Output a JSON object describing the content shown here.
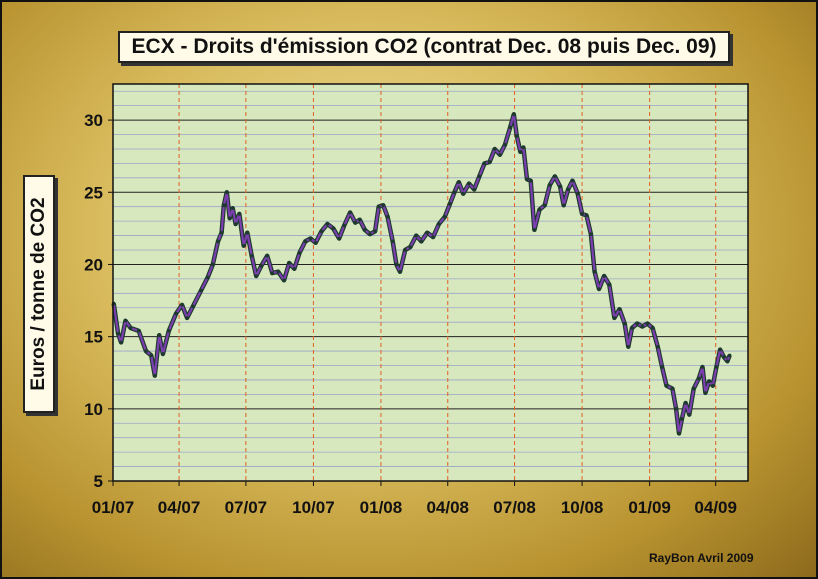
{
  "chart_data": {
    "type": "line",
    "title": "ECX - Droits d'émission CO2 (contrat Dec. 08 puis Dec. 09)",
    "ylabel": "Euros /  tonne de CO2",
    "xlabel": "",
    "credit": "RayBon Avril 2009",
    "x_tick_labels": [
      "01/07",
      "04/07",
      "07/07",
      "10/07",
      "01/08",
      "04/08",
      "07/08",
      "10/08",
      "01/09",
      "04/09"
    ],
    "y_tick_labels": [
      "5",
      "10",
      "15",
      "20",
      "25",
      "30"
    ],
    "ylim": [
      5,
      32.5
    ],
    "xlim": [
      "2007-01-01",
      "2009-05-15"
    ],
    "grid": "major and minor horizontal gridlines; dashed vertical gridlines at each quarter",
    "colors": {
      "plot_background": "#d7e8bf",
      "line": "#7b3fb0",
      "marker": "#1e3a2e",
      "vertical_grid": "#e06020",
      "major_grid": "#222222",
      "minor_grid": "#9aa6c8"
    },
    "series": [
      {
        "points": [
          [
            "2007-01-02",
            17.3
          ],
          [
            "2007-01-08",
            15.2
          ],
          [
            "2007-01-12",
            14.6
          ],
          [
            "2007-01-18",
            16.1
          ],
          [
            "2007-01-25",
            15.6
          ],
          [
            "2007-02-05",
            15.4
          ],
          [
            "2007-02-15",
            14.0
          ],
          [
            "2007-02-22",
            13.7
          ],
          [
            "2007-02-27",
            12.3
          ],
          [
            "2007-03-05",
            15.1
          ],
          [
            "2007-03-10",
            13.8
          ],
          [
            "2007-03-18",
            15.4
          ],
          [
            "2007-03-28",
            16.6
          ],
          [
            "2007-04-05",
            17.2
          ],
          [
            "2007-04-12",
            16.3
          ],
          [
            "2007-04-20",
            17.1
          ],
          [
            "2007-05-01",
            18.2
          ],
          [
            "2007-05-10",
            19.1
          ],
          [
            "2007-05-17",
            20.0
          ],
          [
            "2007-05-24",
            21.6
          ],
          [
            "2007-05-29",
            22.2
          ],
          [
            "2007-06-01",
            24.1
          ],
          [
            "2007-06-05",
            25.0
          ],
          [
            "2007-06-09",
            23.2
          ],
          [
            "2007-06-13",
            23.9
          ],
          [
            "2007-06-17",
            22.8
          ],
          [
            "2007-06-22",
            23.5
          ],
          [
            "2007-06-28",
            21.3
          ],
          [
            "2007-07-03",
            22.2
          ],
          [
            "2007-07-09",
            20.6
          ],
          [
            "2007-07-15",
            19.2
          ],
          [
            "2007-07-22",
            19.9
          ],
          [
            "2007-07-30",
            20.6
          ],
          [
            "2007-08-06",
            19.4
          ],
          [
            "2007-08-14",
            19.5
          ],
          [
            "2007-08-22",
            18.9
          ],
          [
            "2007-08-29",
            20.1
          ],
          [
            "2007-09-05",
            19.7
          ],
          [
            "2007-09-12",
            20.8
          ],
          [
            "2007-09-20",
            21.6
          ],
          [
            "2007-09-27",
            21.8
          ],
          [
            "2007-10-04",
            21.5
          ],
          [
            "2007-10-12",
            22.3
          ],
          [
            "2007-10-20",
            22.8
          ],
          [
            "2007-10-28",
            22.5
          ],
          [
            "2007-11-05",
            21.8
          ],
          [
            "2007-11-12",
            22.7
          ],
          [
            "2007-11-20",
            23.6
          ],
          [
            "2007-11-27",
            22.9
          ],
          [
            "2007-12-03",
            23.1
          ],
          [
            "2007-12-10",
            22.4
          ],
          [
            "2007-12-17",
            22.1
          ],
          [
            "2007-12-24",
            22.3
          ],
          [
            "2007-12-29",
            24.0
          ],
          [
            "2008-01-04",
            24.1
          ],
          [
            "2008-01-10",
            23.3
          ],
          [
            "2008-01-17",
            21.6
          ],
          [
            "2008-01-22",
            20.0
          ],
          [
            "2008-01-27",
            19.5
          ],
          [
            "2008-02-03",
            21.0
          ],
          [
            "2008-02-10",
            21.2
          ],
          [
            "2008-02-18",
            22.0
          ],
          [
            "2008-02-25",
            21.6
          ],
          [
            "2008-03-04",
            22.2
          ],
          [
            "2008-03-12",
            21.9
          ],
          [
            "2008-03-20",
            22.8
          ],
          [
            "2008-03-28",
            23.3
          ],
          [
            "2008-04-04",
            24.2
          ],
          [
            "2008-04-10",
            25.0
          ],
          [
            "2008-04-16",
            25.7
          ],
          [
            "2008-04-22",
            24.9
          ],
          [
            "2008-04-30",
            25.6
          ],
          [
            "2008-05-07",
            25.2
          ],
          [
            "2008-05-14",
            26.1
          ],
          [
            "2008-05-21",
            27.0
          ],
          [
            "2008-05-28",
            27.1
          ],
          [
            "2008-06-04",
            28.0
          ],
          [
            "2008-06-11",
            27.6
          ],
          [
            "2008-06-18",
            28.3
          ],
          [
            "2008-06-25",
            29.5
          ],
          [
            "2008-06-30",
            30.4
          ],
          [
            "2008-07-04",
            28.9
          ],
          [
            "2008-07-09",
            27.8
          ],
          [
            "2008-07-13",
            28.1
          ],
          [
            "2008-07-18",
            25.9
          ],
          [
            "2008-07-23",
            25.8
          ],
          [
            "2008-07-28",
            22.4
          ],
          [
            "2008-08-04",
            23.8
          ],
          [
            "2008-08-11",
            24.1
          ],
          [
            "2008-08-18",
            25.5
          ],
          [
            "2008-08-25",
            26.1
          ],
          [
            "2008-09-01",
            25.4
          ],
          [
            "2008-09-06",
            24.1
          ],
          [
            "2008-09-12",
            25.2
          ],
          [
            "2008-09-18",
            25.8
          ],
          [
            "2008-09-25",
            24.9
          ],
          [
            "2008-10-01",
            23.5
          ],
          [
            "2008-10-07",
            23.4
          ],
          [
            "2008-10-13",
            22.1
          ],
          [
            "2008-10-18",
            19.5
          ],
          [
            "2008-10-24",
            18.3
          ],
          [
            "2008-10-31",
            19.2
          ],
          [
            "2008-11-07",
            18.6
          ],
          [
            "2008-11-14",
            16.3
          ],
          [
            "2008-11-21",
            16.9
          ],
          [
            "2008-11-28",
            15.9
          ],
          [
            "2008-12-03",
            14.3
          ],
          [
            "2008-12-08",
            15.6
          ],
          [
            "2008-12-15",
            15.9
          ],
          [
            "2008-12-22",
            15.7
          ],
          [
            "2008-12-29",
            15.9
          ],
          [
            "2009-01-05",
            15.6
          ],
          [
            "2009-01-12",
            14.3
          ],
          [
            "2009-01-18",
            12.9
          ],
          [
            "2009-01-24",
            11.6
          ],
          [
            "2009-02-01",
            11.4
          ],
          [
            "2009-02-06",
            10.0
          ],
          [
            "2009-02-10",
            8.3
          ],
          [
            "2009-02-14",
            9.3
          ],
          [
            "2009-02-19",
            10.4
          ],
          [
            "2009-02-24",
            9.6
          ],
          [
            "2009-03-02",
            11.4
          ],
          [
            "2009-03-09",
            12.1
          ],
          [
            "2009-03-14",
            12.9
          ],
          [
            "2009-03-18",
            11.1
          ],
          [
            "2009-03-23",
            11.9
          ],
          [
            "2009-03-28",
            11.6
          ],
          [
            "2009-04-02",
            12.9
          ],
          [
            "2009-04-07",
            14.1
          ],
          [
            "2009-04-12",
            13.6
          ],
          [
            "2009-04-17",
            13.3
          ],
          [
            "2009-04-20",
            13.7
          ]
        ]
      }
    ]
  }
}
